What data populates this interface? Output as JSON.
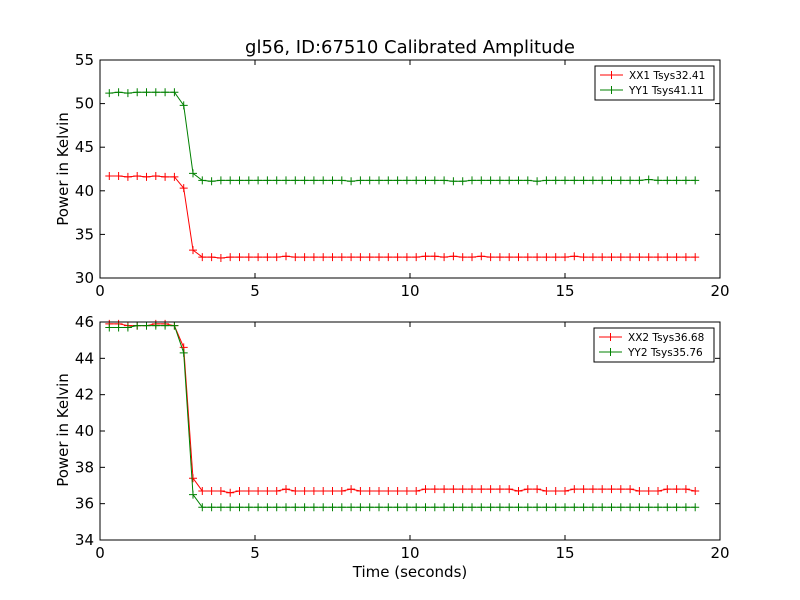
{
  "chart_data": [
    {
      "type": "line",
      "title": "gl56, ID:67510 Calibrated Amplitude",
      "xlabel": "",
      "ylabel": "Power in Kelvin",
      "xlim": [
        0,
        20
      ],
      "ylim": [
        30,
        55
      ],
      "xticks": [
        0,
        5,
        10,
        15,
        20
      ],
      "yticks": [
        30,
        35,
        40,
        45,
        50,
        55
      ],
      "legend_position": "top-right",
      "x": [
        0.3,
        0.6,
        0.9,
        1.2,
        1.5,
        1.8,
        2.1,
        2.4,
        2.7,
        3.0,
        3.3,
        3.6,
        3.9,
        4.2,
        4.5,
        4.8,
        5.1,
        5.4,
        5.7,
        6.0,
        6.3,
        6.6,
        6.9,
        7.2,
        7.5,
        7.8,
        8.1,
        8.4,
        8.7,
        9.0,
        9.3,
        9.6,
        9.9,
        10.2,
        10.5,
        10.8,
        11.1,
        11.4,
        11.7,
        12.0,
        12.3,
        12.6,
        12.9,
        13.2,
        13.5,
        13.8,
        14.1,
        14.4,
        14.7,
        15.0,
        15.3,
        15.6,
        15.9,
        16.2,
        16.5,
        16.8,
        17.1,
        17.4,
        17.7,
        18.0,
        18.3,
        18.6,
        18.9,
        19.2
      ],
      "series": [
        {
          "name": "XX1 Tsys32.41",
          "color": "#ff0000",
          "values": [
            41.7,
            41.7,
            41.6,
            41.7,
            41.6,
            41.7,
            41.6,
            41.6,
            40.3,
            33.2,
            32.4,
            32.4,
            32.3,
            32.4,
            32.4,
            32.4,
            32.4,
            32.4,
            32.4,
            32.5,
            32.4,
            32.4,
            32.4,
            32.4,
            32.4,
            32.4,
            32.4,
            32.4,
            32.4,
            32.4,
            32.4,
            32.4,
            32.4,
            32.4,
            32.5,
            32.5,
            32.4,
            32.5,
            32.4,
            32.4,
            32.5,
            32.4,
            32.4,
            32.4,
            32.4,
            32.4,
            32.4,
            32.4,
            32.4,
            32.4,
            32.5,
            32.4,
            32.4,
            32.4,
            32.4,
            32.4,
            32.4,
            32.4,
            32.4,
            32.4,
            32.4,
            32.4,
            32.4,
            32.4
          ]
        },
        {
          "name": "YY1 Tsys41.11",
          "color": "#008000",
          "values": [
            51.2,
            51.3,
            51.2,
            51.3,
            51.3,
            51.3,
            51.3,
            51.3,
            49.8,
            42.0,
            41.2,
            41.1,
            41.2,
            41.2,
            41.2,
            41.2,
            41.2,
            41.2,
            41.2,
            41.2,
            41.2,
            41.2,
            41.2,
            41.2,
            41.2,
            41.2,
            41.1,
            41.2,
            41.2,
            41.2,
            41.2,
            41.2,
            41.2,
            41.2,
            41.2,
            41.2,
            41.2,
            41.1,
            41.1,
            41.2,
            41.2,
            41.2,
            41.2,
            41.2,
            41.2,
            41.2,
            41.1,
            41.2,
            41.2,
            41.2,
            41.2,
            41.2,
            41.2,
            41.2,
            41.2,
            41.2,
            41.2,
            41.2,
            41.3,
            41.2,
            41.2,
            41.2,
            41.2,
            41.2
          ]
        }
      ]
    },
    {
      "type": "line",
      "title": "",
      "xlabel": "Time (seconds)",
      "ylabel": "Power in Kelvin",
      "xlim": [
        0,
        20
      ],
      "ylim": [
        34,
        46
      ],
      "xticks": [
        0,
        5,
        10,
        15,
        20
      ],
      "yticks": [
        34,
        36,
        38,
        40,
        42,
        44,
        46
      ],
      "legend_position": "top-right",
      "x": [
        0.3,
        0.6,
        0.9,
        1.2,
        1.5,
        1.8,
        2.1,
        2.4,
        2.7,
        3.0,
        3.3,
        3.6,
        3.9,
        4.2,
        4.5,
        4.8,
        5.1,
        5.4,
        5.7,
        6.0,
        6.3,
        6.6,
        6.9,
        7.2,
        7.5,
        7.8,
        8.1,
        8.4,
        8.7,
        9.0,
        9.3,
        9.6,
        9.9,
        10.2,
        10.5,
        10.8,
        11.1,
        11.4,
        11.7,
        12.0,
        12.3,
        12.6,
        12.9,
        13.2,
        13.5,
        13.8,
        14.1,
        14.4,
        14.7,
        15.0,
        15.3,
        15.6,
        15.9,
        16.2,
        16.5,
        16.8,
        17.1,
        17.4,
        17.7,
        18.0,
        18.3,
        18.6,
        18.9,
        19.2
      ],
      "series": [
        {
          "name": "XX2 Tsys36.68",
          "color": "#ff0000",
          "values": [
            45.9,
            45.9,
            45.8,
            45.8,
            45.8,
            45.9,
            45.9,
            45.8,
            44.6,
            37.4,
            36.7,
            36.7,
            36.7,
            36.6,
            36.7,
            36.7,
            36.7,
            36.7,
            36.7,
            36.8,
            36.7,
            36.7,
            36.7,
            36.7,
            36.7,
            36.7,
            36.8,
            36.7,
            36.7,
            36.7,
            36.7,
            36.7,
            36.7,
            36.7,
            36.8,
            36.8,
            36.8,
            36.8,
            36.8,
            36.8,
            36.8,
            36.8,
            36.8,
            36.8,
            36.7,
            36.8,
            36.8,
            36.7,
            36.7,
            36.7,
            36.8,
            36.8,
            36.8,
            36.8,
            36.8,
            36.8,
            36.8,
            36.7,
            36.7,
            36.7,
            36.8,
            36.8,
            36.8,
            36.7
          ]
        },
        {
          "name": "YY2 Tsys35.76",
          "color": "#008000",
          "values": [
            45.7,
            45.7,
            45.7,
            45.8,
            45.8,
            45.8,
            45.8,
            45.8,
            44.3,
            36.5,
            35.8,
            35.8,
            35.8,
            35.8,
            35.8,
            35.8,
            35.8,
            35.8,
            35.8,
            35.8,
            35.8,
            35.8,
            35.8,
            35.8,
            35.8,
            35.8,
            35.8,
            35.8,
            35.8,
            35.8,
            35.8,
            35.8,
            35.8,
            35.8,
            35.8,
            35.8,
            35.8,
            35.8,
            35.8,
            35.8,
            35.8,
            35.8,
            35.8,
            35.8,
            35.8,
            35.8,
            35.8,
            35.8,
            35.8,
            35.8,
            35.8,
            35.8,
            35.8,
            35.8,
            35.8,
            35.8,
            35.8,
            35.8,
            35.8,
            35.8,
            35.8,
            35.8,
            35.8,
            35.8
          ]
        }
      ]
    }
  ]
}
